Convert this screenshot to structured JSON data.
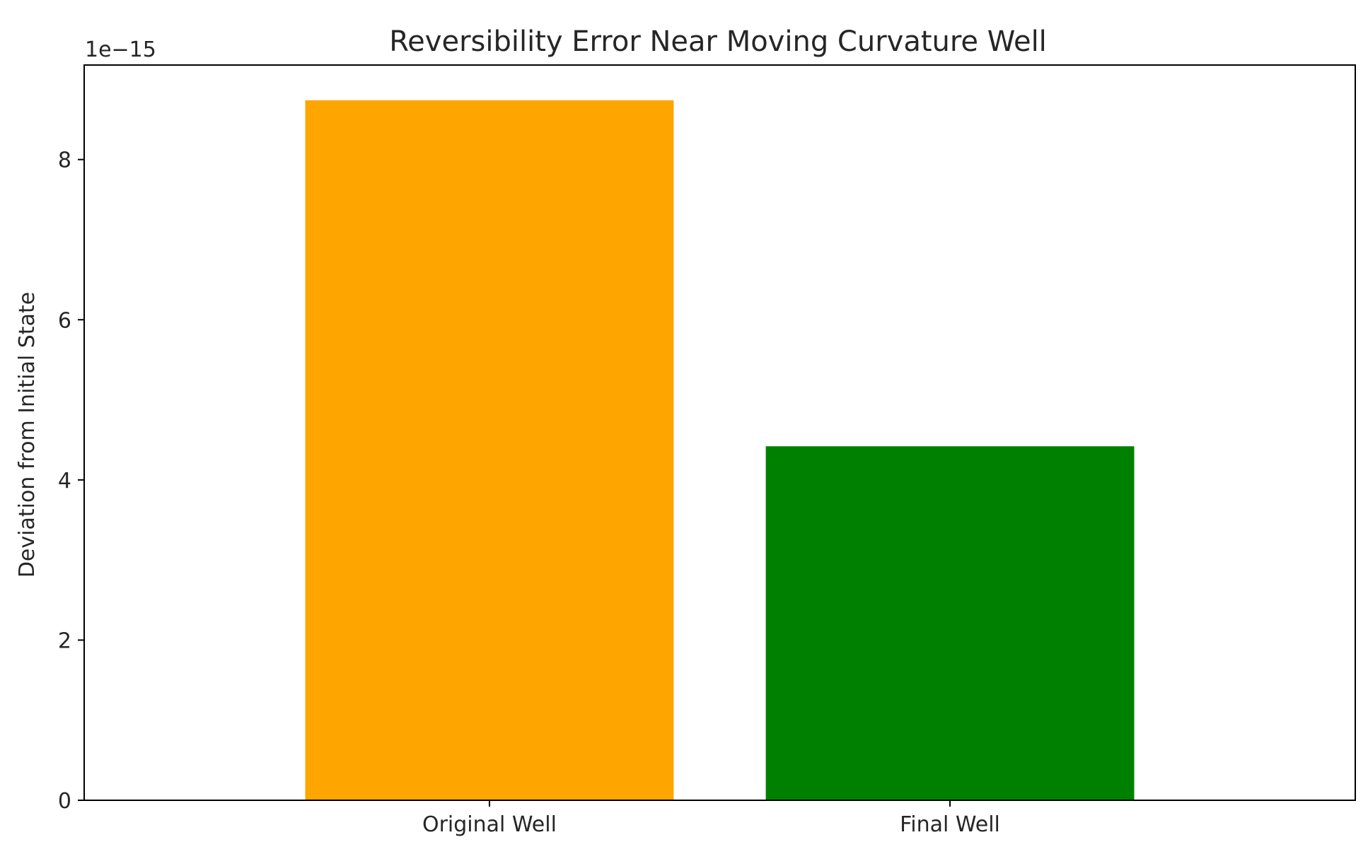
{
  "chart_data": {
    "type": "bar",
    "title": "Reversibility Error Near Moving Curvature Well",
    "xlabel": "",
    "ylabel": "Deviation from Initial State",
    "offset_label": "1e−15",
    "scale": 1e-15,
    "categories": [
      "Original Well",
      "Final Well"
    ],
    "values": [
      8.74e-15,
      4.42e-15
    ],
    "colors": [
      "#ffa500",
      "#008000"
    ],
    "ylim": [
      0,
      9.18e-15
    ],
    "yticks": [
      0,
      2e-15,
      4e-15,
      6e-15,
      8e-15
    ],
    "ytick_labels": [
      "0",
      "2",
      "4",
      "6",
      "8"
    ],
    "grid": false,
    "legend": "none"
  }
}
